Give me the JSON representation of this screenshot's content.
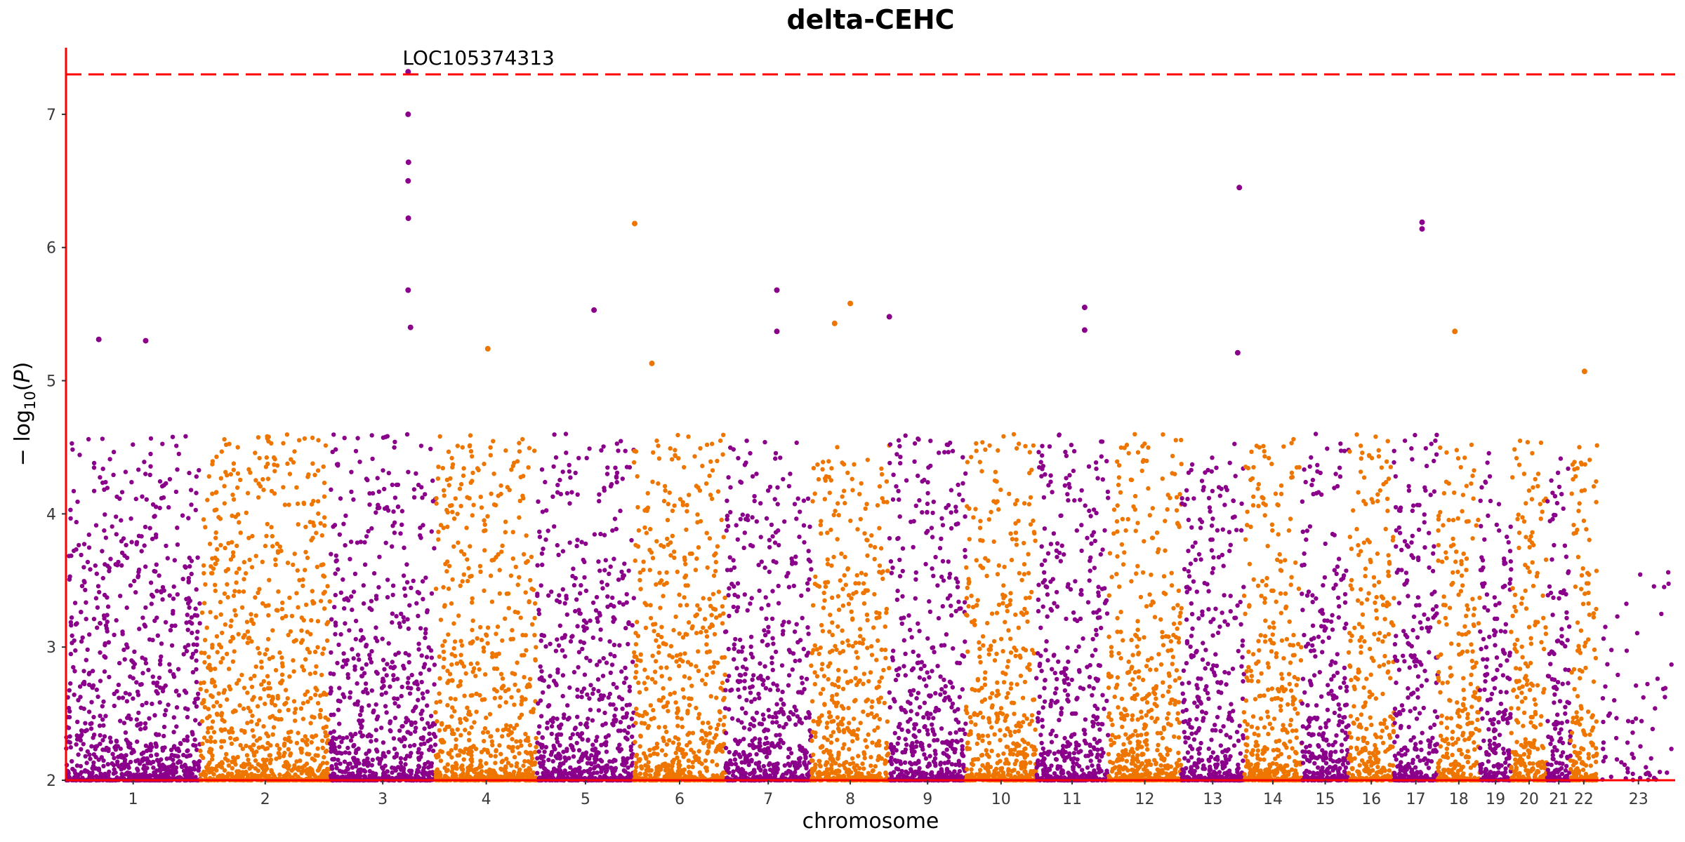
{
  "chart_data": {
    "type": "scatter",
    "title": "delta-CEHC",
    "xlabel": "chromosome",
    "ylabel": "−log10(P)",
    "ylim": [
      2,
      7.5
    ],
    "y_ticks": [
      2,
      3,
      4,
      5,
      6,
      7
    ],
    "grid": false,
    "legend": "none",
    "threshold": 7.3,
    "colors": {
      "odd": "#8B008B",
      "even": "#EE7600",
      "axis": "#FF0000",
      "threshold": "#FF0000"
    },
    "chromosomes": [
      {
        "label": "1",
        "start": 0.0,
        "end": 8.6
      },
      {
        "label": "2",
        "start": 8.6,
        "end": 16.9
      },
      {
        "label": "3",
        "start": 16.9,
        "end": 23.65
      },
      {
        "label": "4",
        "start": 23.65,
        "end": 30.15
      },
      {
        "label": "5",
        "start": 30.15,
        "end": 36.35
      },
      {
        "label": "6",
        "start": 36.35,
        "end": 42.2
      },
      {
        "label": "7",
        "start": 42.2,
        "end": 47.7
      },
      {
        "label": "8",
        "start": 47.7,
        "end": 52.7
      },
      {
        "label": "9",
        "start": 52.7,
        "end": 57.6
      },
      {
        "label": "10",
        "start": 57.6,
        "end": 62.1
      },
      {
        "label": "11",
        "start": 62.1,
        "end": 66.7
      },
      {
        "label": "12",
        "start": 66.7,
        "end": 71.4
      },
      {
        "label": "13",
        "start": 71.4,
        "end": 75.4
      },
      {
        "label": "14",
        "start": 75.4,
        "end": 79.1
      },
      {
        "label": "15",
        "start": 79.1,
        "end": 82.1
      },
      {
        "label": "16",
        "start": 82.1,
        "end": 85.0
      },
      {
        "label": "17",
        "start": 85.0,
        "end": 87.8
      },
      {
        "label": "18",
        "start": 87.8,
        "end": 90.5
      },
      {
        "label": "19",
        "start": 90.5,
        "end": 92.5
      },
      {
        "label": "20",
        "start": 92.5,
        "end": 94.8
      },
      {
        "label": "21",
        "start": 94.8,
        "end": 96.3
      },
      {
        "label": "22",
        "start": 96.3,
        "end": 98.0
      },
      {
        "label": "23",
        "start": 98.3,
        "end": 103.0
      }
    ],
    "top_hits": [
      {
        "chr": "3",
        "x": 21.9,
        "y": 7.32,
        "label": "LOC105374313"
      },
      {
        "chr": "3",
        "x": 21.9,
        "y": 7.0
      },
      {
        "chr": "3",
        "x": 21.92,
        "y": 6.64
      },
      {
        "chr": "3",
        "x": 21.9,
        "y": 6.5
      },
      {
        "chr": "3",
        "x": 21.91,
        "y": 6.22
      },
      {
        "chr": "3",
        "x": 21.9,
        "y": 5.68
      },
      {
        "chr": "3",
        "x": 22.05,
        "y": 5.4
      },
      {
        "chr": "5",
        "x": 33.8,
        "y": 5.53
      },
      {
        "chr": "6",
        "x": 36.4,
        "y": 6.18
      },
      {
        "chr": "7",
        "x": 45.5,
        "y": 5.68
      },
      {
        "chr": "7",
        "x": 45.5,
        "y": 5.37
      },
      {
        "chr": "8",
        "x": 50.2,
        "y": 5.58
      },
      {
        "chr": "8",
        "x": 49.2,
        "y": 5.43
      },
      {
        "chr": "9",
        "x": 52.7,
        "y": 5.48
      },
      {
        "chr": "11",
        "x": 65.2,
        "y": 5.55
      },
      {
        "chr": "11",
        "x": 65.2,
        "y": 5.38
      },
      {
        "chr": "13",
        "x": 75.1,
        "y": 6.45
      },
      {
        "chr": "13",
        "x": 75.0,
        "y": 5.21
      },
      {
        "chr": "17",
        "x": 86.8,
        "y": 6.19
      },
      {
        "chr": "17",
        "x": 86.8,
        "y": 6.14
      },
      {
        "chr": "18",
        "x": 88.9,
        "y": 5.37
      },
      {
        "chr": "1",
        "x": 2.1,
        "y": 5.31
      },
      {
        "chr": "1",
        "x": 5.1,
        "y": 5.3
      },
      {
        "chr": "4",
        "x": 27.0,
        "y": 5.24
      },
      {
        "chr": "6",
        "x": 37.5,
        "y": 5.13
      },
      {
        "chr": "22",
        "x": 97.2,
        "y": 5.07
      }
    ],
    "background_density": {
      "description": "dense SNP cloud per chromosome, y from 2 to ~4.5"
    }
  }
}
